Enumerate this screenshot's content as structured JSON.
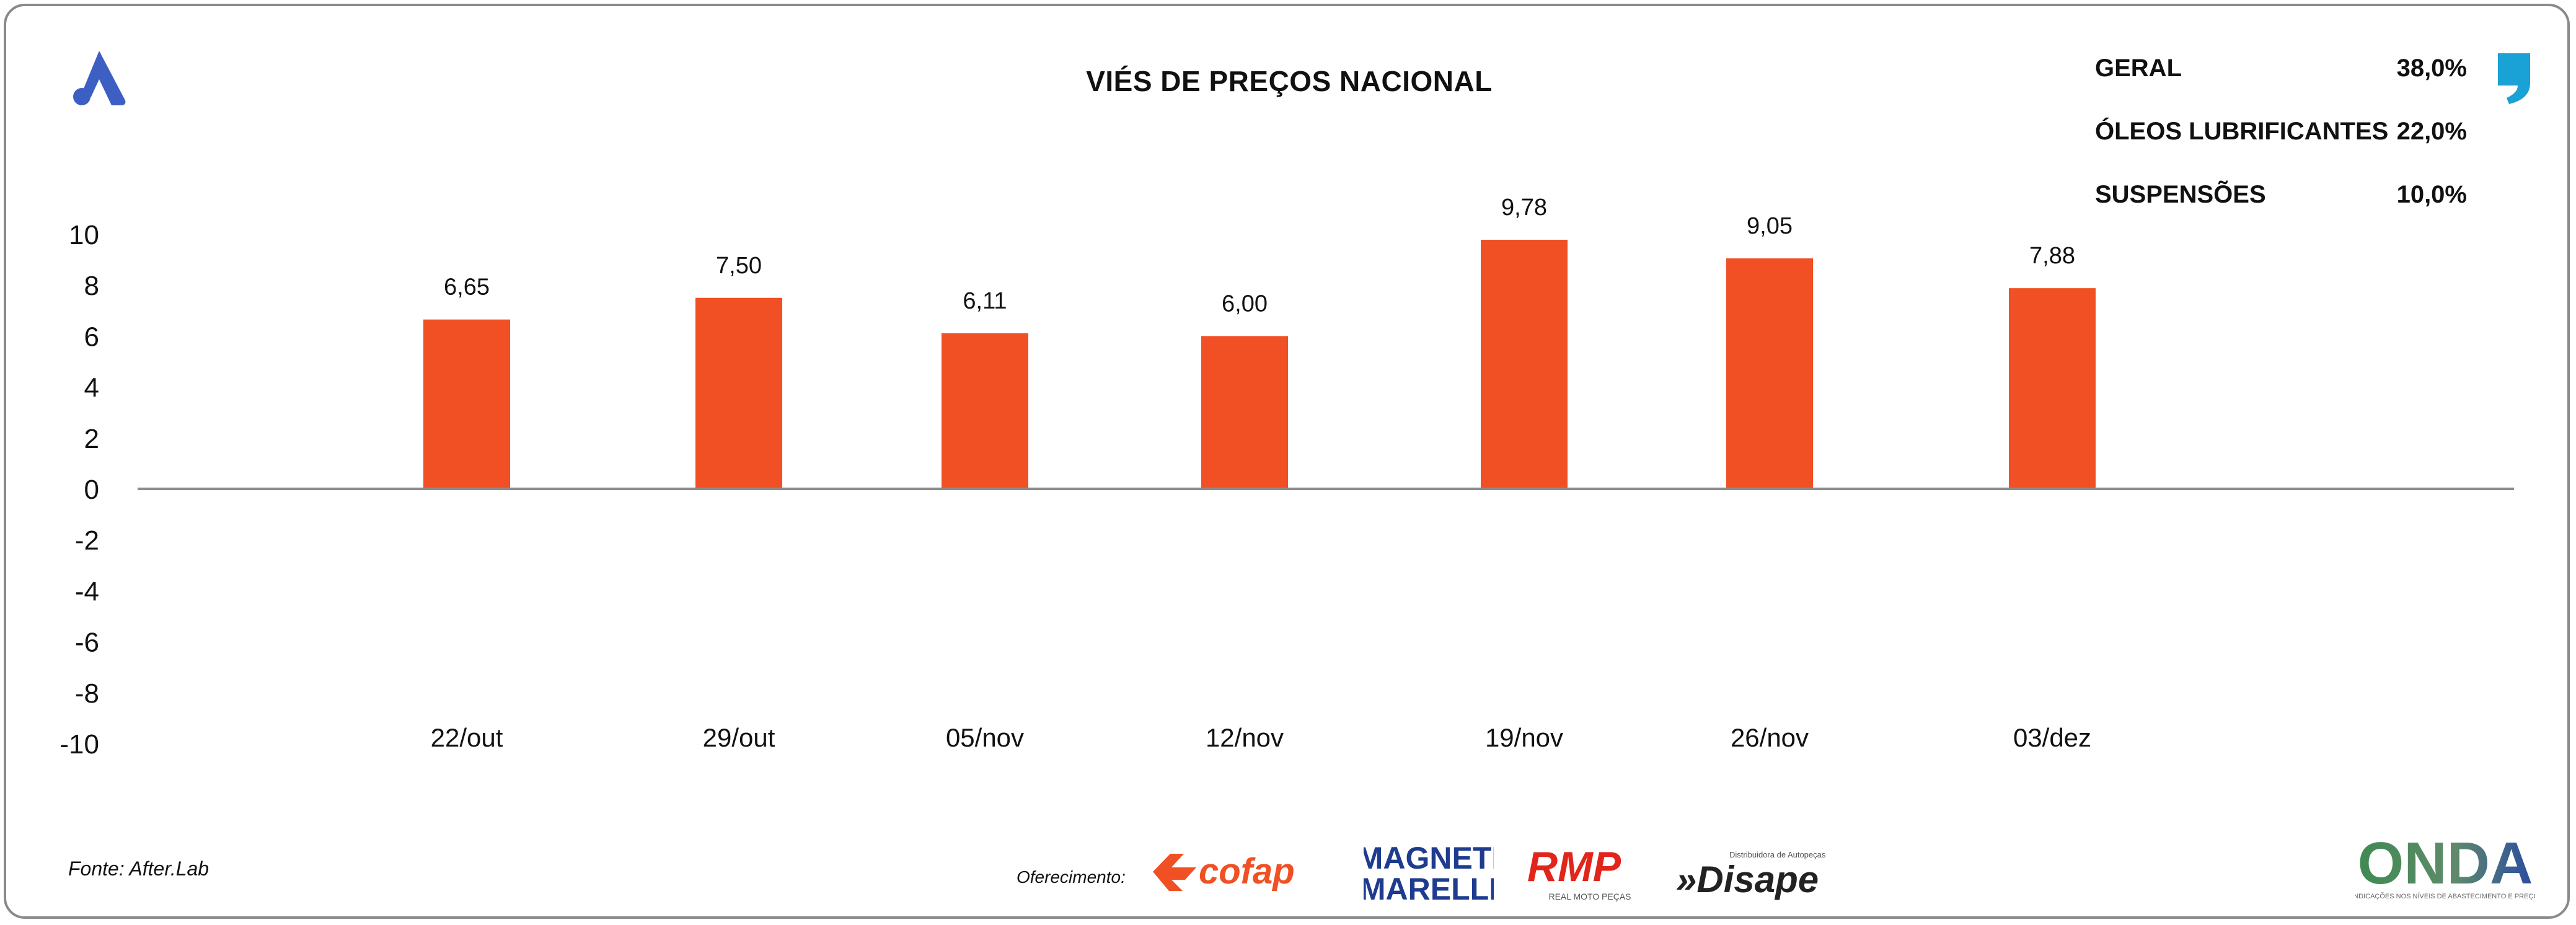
{
  "header": {
    "title": "VIÉS DE PREÇOS NACIONAL",
    "brand_icon": "after-lab-a-logo",
    "corner_icon": "quote-mark-icon"
  },
  "stats": [
    {
      "label": "GERAL",
      "value": "38,0%"
    },
    {
      "label": "ÓLEOS LUBRIFICANTES",
      "value": "22,0%"
    },
    {
      "label": "SUSPENSÕES",
      "value": "10,0%"
    }
  ],
  "chart_data": {
    "type": "bar",
    "title": "VIÉS DE PREÇOS NACIONAL",
    "categories": [
      "22/out",
      "29/out",
      "05/nov",
      "12/nov",
      "19/nov",
      "26/nov",
      "03/dez"
    ],
    "values": [
      6.65,
      7.5,
      6.11,
      6.0,
      9.78,
      9.05,
      7.88
    ],
    "value_labels": [
      "6,65",
      "7,50",
      "6,11",
      "6,00",
      "9,78",
      "9,05",
      "7,88"
    ],
    "ylim": [
      -10,
      10
    ],
    "yticks": [
      10,
      8,
      6,
      4,
      2,
      0,
      -2,
      -4,
      -6,
      -8,
      -10
    ],
    "ytick_labels": [
      "10",
      "8",
      "6",
      "4",
      "2",
      "0",
      "-2",
      "-4",
      "-6",
      "-8",
      "-10"
    ],
    "xlabel": "",
    "ylabel": "",
    "grid": false,
    "legend": false,
    "bar_color": "#F05023",
    "axis_color": "#8c8c8c"
  },
  "footer": {
    "source": "Fonte: After.Lab",
    "sponsor_label": "Oferecimento:",
    "sponsors": [
      "cofap",
      "MAGNETI MARELLI",
      "RMP",
      "»Disape"
    ],
    "sponsor_small": {
      "rmp_sub": "REAL MOTO PEÇAS",
      "disape_sub": "Distribuidora de Autopeças",
      "onda_sub": "INDICAÇÕES NOS NÍVEIS DE ABASTECIMENTO E PREÇO"
    },
    "onda_logo": "ONDA",
    "colors": {
      "cofap": "#F05023",
      "magneti": "#1d3b8f",
      "rmp": "#e1251b",
      "disape": "#222222",
      "onda": "#2f6d5f",
      "brand_blue": "#3d5fc4",
      "quote_blue": "#1aa1d6"
    }
  }
}
